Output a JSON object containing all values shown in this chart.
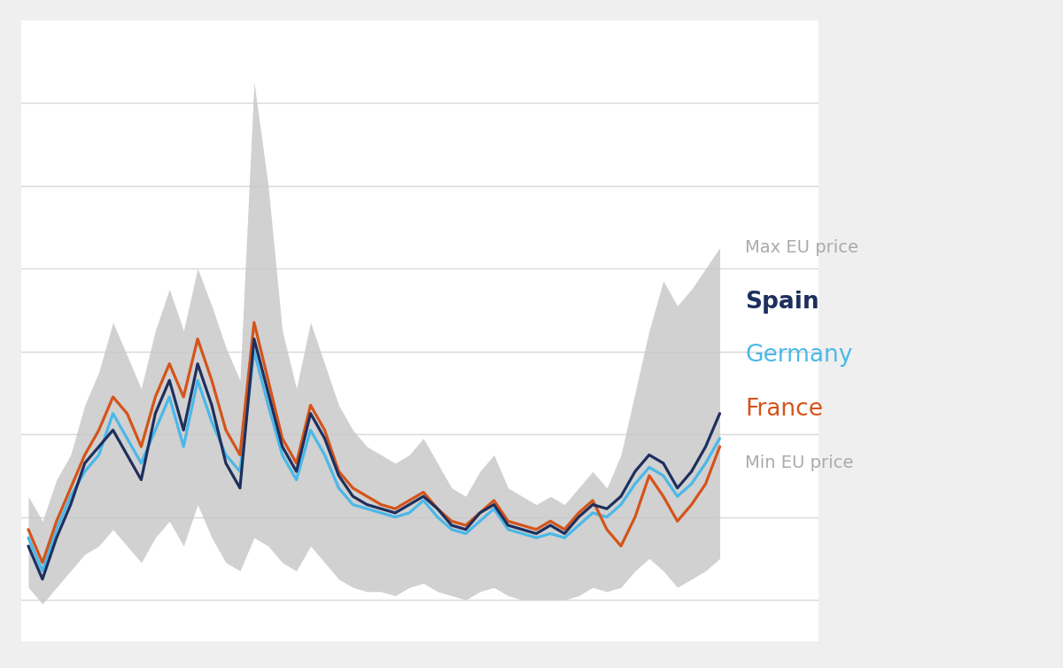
{
  "x": [
    0,
    1,
    2,
    3,
    4,
    5,
    6,
    7,
    8,
    9,
    10,
    11,
    12,
    13,
    14,
    15,
    16,
    17,
    18,
    19,
    20,
    21,
    22,
    23,
    24,
    25,
    26,
    27,
    28,
    29,
    30,
    31,
    32,
    33,
    34,
    35,
    36,
    37,
    38,
    39,
    40,
    41,
    42,
    43,
    44,
    45,
    46,
    47,
    48,
    49
  ],
  "spain": [
    18,
    10,
    20,
    28,
    38,
    42,
    46,
    40,
    34,
    50,
    58,
    46,
    62,
    52,
    38,
    32,
    68,
    55,
    42,
    36,
    50,
    44,
    35,
    30,
    28,
    27,
    26,
    28,
    30,
    27,
    23,
    22,
    26,
    28,
    23,
    22,
    21,
    23,
    21,
    25,
    28,
    27,
    30,
    36,
    40,
    38,
    32,
    36,
    42,
    50
  ],
  "germany": [
    20,
    12,
    22,
    30,
    36,
    40,
    50,
    44,
    38,
    46,
    54,
    42,
    58,
    48,
    40,
    36,
    65,
    52,
    40,
    34,
    46,
    40,
    32,
    28,
    27,
    26,
    25,
    26,
    29,
    25,
    22,
    21,
    24,
    27,
    22,
    21,
    20,
    21,
    20,
    23,
    26,
    25,
    28,
    33,
    37,
    35,
    30,
    33,
    38,
    44
  ],
  "france": [
    22,
    14,
    24,
    32,
    40,
    46,
    54,
    50,
    42,
    54,
    62,
    54,
    68,
    58,
    46,
    40,
    72,
    58,
    44,
    38,
    52,
    46,
    36,
    32,
    30,
    28,
    27,
    29,
    31,
    27,
    24,
    23,
    26,
    29,
    24,
    23,
    22,
    24,
    22,
    26,
    29,
    22,
    18,
    25,
    35,
    30,
    24,
    28,
    33,
    42
  ],
  "eu_max": [
    30,
    24,
    34,
    40,
    52,
    60,
    72,
    64,
    56,
    70,
    80,
    70,
    85,
    76,
    66,
    58,
    130,
    105,
    70,
    56,
    72,
    62,
    52,
    46,
    42,
    40,
    38,
    40,
    44,
    38,
    32,
    30,
    36,
    40,
    32,
    30,
    28,
    30,
    28,
    32,
    36,
    32,
    40,
    55,
    70,
    82,
    76,
    80,
    85,
    90
  ],
  "eu_min": [
    8,
    4,
    8,
    12,
    16,
    18,
    22,
    18,
    14,
    20,
    24,
    18,
    28,
    20,
    14,
    12,
    20,
    18,
    14,
    12,
    18,
    14,
    10,
    8,
    7,
    7,
    6,
    8,
    9,
    7,
    6,
    5,
    7,
    8,
    6,
    5,
    5,
    5,
    5,
    6,
    8,
    7,
    8,
    12,
    15,
    12,
    8,
    10,
    12,
    15
  ],
  "bg_color": "#efefef",
  "chart_bg": "#ffffff",
  "spain_color": "#1e2f5e",
  "germany_color": "#4ab8e8",
  "france_color": "#d4541a",
  "eu_fill_color": "#c9c9c9",
  "grid_color": "#d8d8d8",
  "ylim_min": -5,
  "ylim_max": 145,
  "xlim_min": -0.5,
  "xlim_max": 56,
  "legend_items": [
    {
      "label": "Max EU price",
      "color": "#aaaaaa",
      "fontsize": 14,
      "bold": false
    },
    {
      "label": "Spain",
      "color": "#1e2f5e",
      "fontsize": 19,
      "bold": true
    },
    {
      "label": "Germany",
      "color": "#4ab8e8",
      "fontsize": 19,
      "bold": false
    },
    {
      "label": "France",
      "color": "#d4541a",
      "fontsize": 19,
      "bold": false
    },
    {
      "label": "Min EU price",
      "color": "#aaaaaa",
      "fontsize": 14,
      "bold": false
    }
  ]
}
